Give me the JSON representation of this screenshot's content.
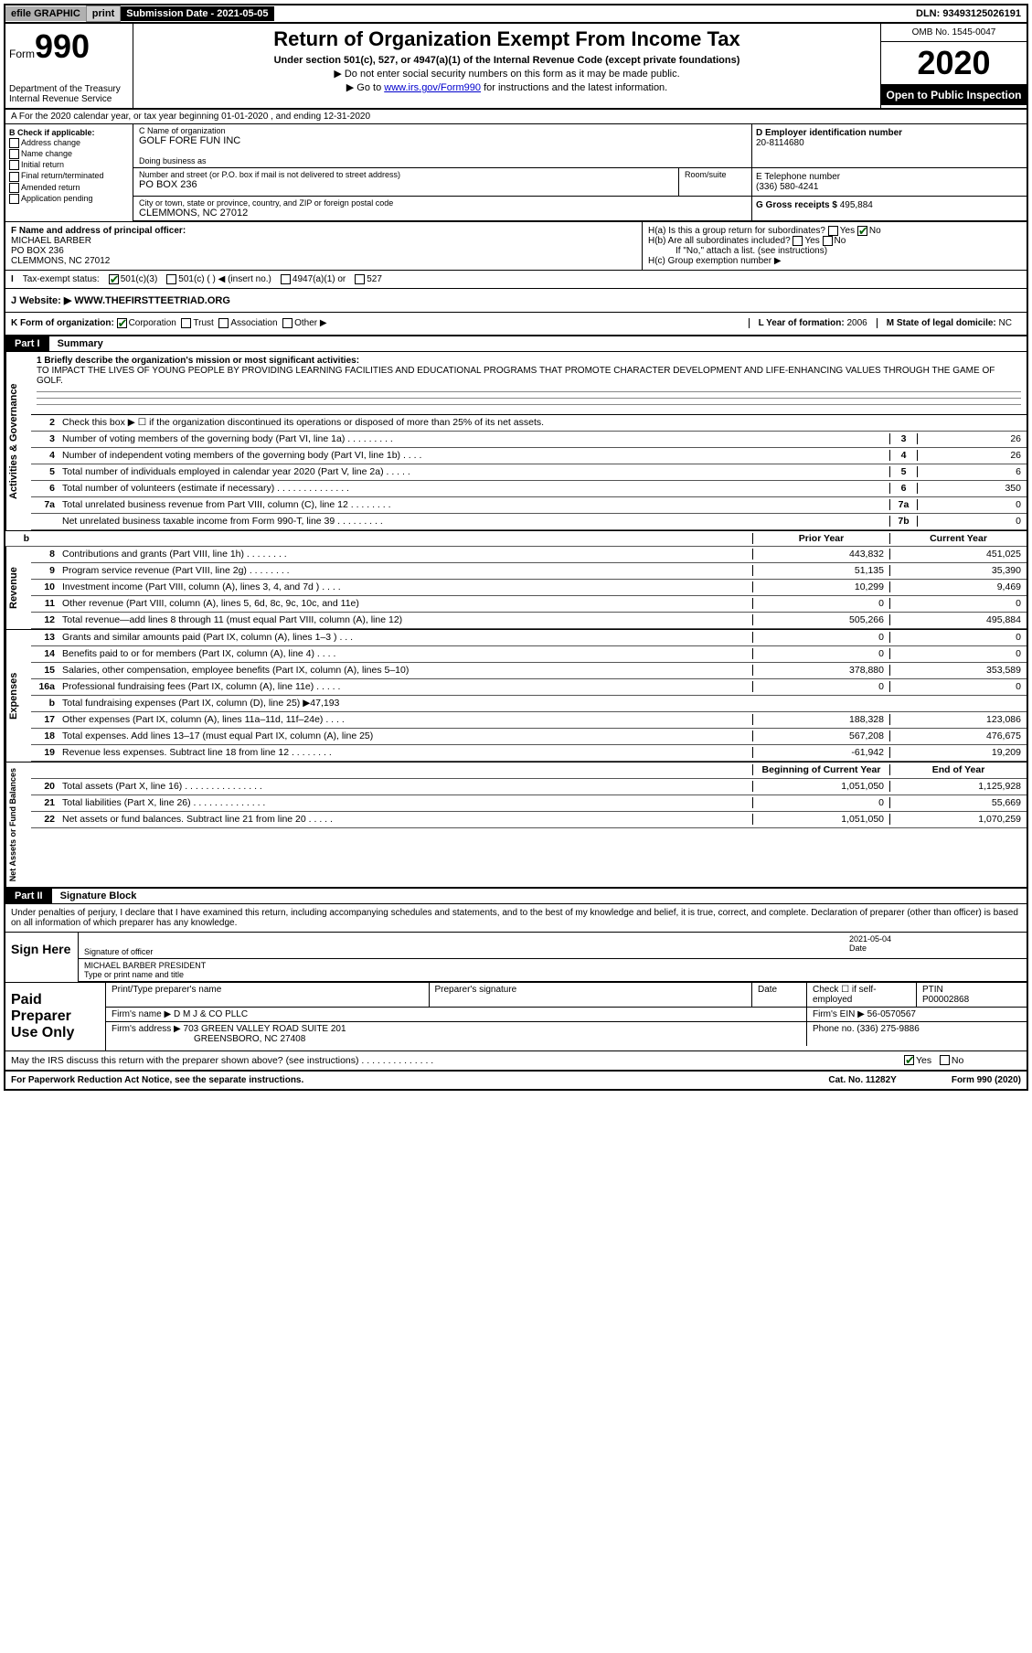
{
  "top": {
    "efile": "efile GRAPHIC",
    "print": "print",
    "sub_date_label": "Submission Date - 2021-05-05",
    "dln": "DLN: 93493125026191"
  },
  "header": {
    "form_word": "Form",
    "form_num": "990",
    "dept": "Department of the Treasury",
    "service": "Internal Revenue Service",
    "title": "Return of Organization Exempt From Income Tax",
    "sub": "Under section 501(c), 527, or 4947(a)(1) of the Internal Revenue Code (except private foundations)",
    "note1": "▶ Do not enter social security numbers on this form as it may be made public.",
    "note2_pre": "▶ Go to ",
    "note2_link": "www.irs.gov/Form990",
    "note2_post": " for instructions and the latest information.",
    "omb": "OMB No. 1545-0047",
    "year": "2020",
    "inspect": "Open to Public Inspection"
  },
  "lineA": "A For the 2020 calendar year, or tax year beginning 01-01-2020   , and ending 12-31-2020",
  "colB": {
    "title": "B Check if applicable:",
    "opts": [
      "Address change",
      "Name change",
      "Initial return",
      "Final return/terminated",
      "Amended return",
      "Application pending"
    ]
  },
  "C": {
    "name_label": "C Name of organization",
    "name": "GOLF FORE FUN INC",
    "dba_label": "Doing business as",
    "addr_label": "Number and street (or P.O. box if mail is not delivered to street address)",
    "addr": "PO BOX 236",
    "room_label": "Room/suite",
    "city_label": "City or town, state or province, country, and ZIP or foreign postal code",
    "city": "CLEMMONS, NC  27012"
  },
  "D": {
    "label": "D Employer identification number",
    "val": "20-8114680"
  },
  "E": {
    "label": "E Telephone number",
    "val": "(336) 580-4241"
  },
  "G": {
    "label": "G Gross receipts $",
    "val": "495,884"
  },
  "F": {
    "label": "F  Name and address of principal officer:",
    "name": "MICHAEL BARBER",
    "addr1": "PO BOX 236",
    "addr2": "CLEMMONS, NC  27012"
  },
  "H": {
    "a": "H(a)  Is this a group return for subordinates?",
    "b": "H(b)  Are all subordinates included?",
    "b_note": "If \"No,\" attach a list. (see instructions)",
    "c": "H(c)  Group exemption number ▶",
    "yes": "Yes",
    "no": "No"
  },
  "I": {
    "label": "Tax-exempt status:",
    "opts": [
      "501(c)(3)",
      "501(c) (  ) ◀ (insert no.)",
      "4947(a)(1) or",
      "527"
    ]
  },
  "J": {
    "label": "Website: ▶",
    "val": "WWW.THEFIRSTTEETRIAD.ORG"
  },
  "K": {
    "label": "K Form of organization:",
    "opts": [
      "Corporation",
      "Trust",
      "Association",
      "Other ▶"
    ],
    "L_label": "L Year of formation:",
    "L_val": "2006",
    "M_label": "M State of legal domicile:",
    "M_val": "NC"
  },
  "part1": {
    "hdr": "Part I",
    "title": "Summary"
  },
  "ag": {
    "side": "Activities & Governance",
    "q1_label": "1  Briefly describe the organization's mission or most significant activities:",
    "q1_text": "TO IMPACT THE LIVES OF YOUNG PEOPLE BY PROVIDING LEARNING FACILITIES AND EDUCATIONAL PROGRAMS THAT PROMOTE CHARACTER DEVELOPMENT AND LIFE-ENHANCING VALUES THROUGH THE GAME OF GOLF.",
    "q2": "Check this box ▶ ☐  if the organization discontinued its operations or disposed of more than 25% of its net assets.",
    "rows": [
      {
        "n": "3",
        "t": "Number of voting members of the governing body (Part VI, line 1a)  .  .  .  .  .  .  .  .  .",
        "b": "3",
        "v": "26"
      },
      {
        "n": "4",
        "t": "Number of independent voting members of the governing body (Part VI, line 1b)  .  .  .  .",
        "b": "4",
        "v": "26"
      },
      {
        "n": "5",
        "t": "Total number of individuals employed in calendar year 2020 (Part V, line 2a)  .  .  .  .  .",
        "b": "5",
        "v": "6"
      },
      {
        "n": "6",
        "t": "Total number of volunteers (estimate if necessary)   .  .  .  .  .  .  .  .  .  .  .  .  .  .",
        "b": "6",
        "v": "350"
      },
      {
        "n": "7a",
        "t": "Total unrelated business revenue from Part VIII, column (C), line 12   .  .  .  .  .  .  .  .",
        "b": "7a",
        "v": "0"
      },
      {
        "n": "",
        "t": "Net unrelated business taxable income from Form 990-T, line 39   .  .  .  .  .  .  .  .  .",
        "b": "7b",
        "v": "0"
      }
    ]
  },
  "cols": {
    "b": "b",
    "prior": "Prior Year",
    "current": "Current Year"
  },
  "rev": {
    "side": "Revenue",
    "rows": [
      {
        "n": "8",
        "t": "Contributions and grants (Part VIII, line 1h)   .  .  .  .  .  .  .  .",
        "p": "443,832",
        "c": "451,025"
      },
      {
        "n": "9",
        "t": "Program service revenue (Part VIII, line 2g)   .  .  .  .  .  .  .  .",
        "p": "51,135",
        "c": "35,390"
      },
      {
        "n": "10",
        "t": "Investment income (Part VIII, column (A), lines 3, 4, and 7d )   .  .  .  .",
        "p": "10,299",
        "c": "9,469"
      },
      {
        "n": "11",
        "t": "Other revenue (Part VIII, column (A), lines 5, 6d, 8c, 9c, 10c, and 11e)",
        "p": "0",
        "c": "0"
      },
      {
        "n": "12",
        "t": "Total revenue—add lines 8 through 11 (must equal Part VIII, column (A), line 12)",
        "p": "505,266",
        "c": "495,884"
      }
    ]
  },
  "exp": {
    "side": "Expenses",
    "rows": [
      {
        "n": "13",
        "t": "Grants and similar amounts paid (Part IX, column (A), lines 1–3 )  .  .  .",
        "p": "0",
        "c": "0"
      },
      {
        "n": "14",
        "t": "Benefits paid to or for members (Part IX, column (A), line 4)  .  .  .  .",
        "p": "0",
        "c": "0"
      },
      {
        "n": "15",
        "t": "Salaries, other compensation, employee benefits (Part IX, column (A), lines 5–10)",
        "p": "378,880",
        "c": "353,589"
      },
      {
        "n": "16a",
        "t": "Professional fundraising fees (Part IX, column (A), line 11e)  .  .  .  .  .",
        "p": "0",
        "c": "0"
      }
    ],
    "b_row": {
      "n": "b",
      "t": "Total fundraising expenses (Part IX, column (D), line 25) ▶47,193"
    },
    "rows2": [
      {
        "n": "17",
        "t": "Other expenses (Part IX, column (A), lines 11a–11d, 11f–24e)  .  .  .  .",
        "p": "188,328",
        "c": "123,086"
      },
      {
        "n": "18",
        "t": "Total expenses. Add lines 13–17 (must equal Part IX, column (A), line 25)",
        "p": "567,208",
        "c": "476,675"
      },
      {
        "n": "19",
        "t": "Revenue less expenses. Subtract line 18 from line 12 .  .  .  .  .  .  .  .",
        "p": "-61,942",
        "c": "19,209"
      }
    ]
  },
  "na": {
    "side": "Net Assets or Fund Balances",
    "hdr_p": "Beginning of Current Year",
    "hdr_c": "End of Year",
    "rows": [
      {
        "n": "20",
        "t": "Total assets (Part X, line 16)  .  .  .  .  .  .  .  .  .  .  .  .  .  .  .",
        "p": "1,051,050",
        "c": "1,125,928"
      },
      {
        "n": "21",
        "t": "Total liabilities (Part X, line 26)  .  .  .  .  .  .  .  .  .  .  .  .  .  .",
        "p": "0",
        "c": "55,669"
      },
      {
        "n": "22",
        "t": "Net assets or fund balances. Subtract line 21 from line 20  .  .  .  .  .",
        "p": "1,051,050",
        "c": "1,070,259"
      }
    ]
  },
  "part2": {
    "hdr": "Part II",
    "title": "Signature Block"
  },
  "sig": {
    "decl": "Under penalties of perjury, I declare that I have examined this return, including accompanying schedules and statements, and to the best of my knowledge and belief, it is true, correct, and complete. Declaration of preparer (other than officer) is based on all information of which preparer has any knowledge.",
    "sign_here": "Sign Here",
    "sig_label": "Signature of officer",
    "date": "2021-05-04",
    "date_label": "Date",
    "name": "MICHAEL BARBER  PRESIDENT",
    "name_label": "Type or print name and title"
  },
  "prep": {
    "title": "Paid Preparer Use Only",
    "h1": "Print/Type preparer's name",
    "h2": "Preparer's signature",
    "h3": "Date",
    "check_label": "Check ☐ if self-employed",
    "ptin_label": "PTIN",
    "ptin": "P00002868",
    "firm_label": "Firm's name   ▶",
    "firm": "D M J & CO PLLC",
    "ein_label": "Firm's EIN ▶",
    "ein": "56-0570567",
    "addr_label": "Firm's address ▶",
    "addr": "703 GREEN VALLEY ROAD SUITE 201",
    "city": "GREENSBORO, NC  27408",
    "phone_label": "Phone no.",
    "phone": "(336) 275-9886"
  },
  "footer": {
    "discuss": "May the IRS discuss this return with the preparer shown above? (see instructions)  .  .  .  .  .  .  .  .  .  .  .  .  .  .",
    "yes": "Yes",
    "no": "No",
    "pra": "For Paperwork Reduction Act Notice, see the separate instructions.",
    "cat": "Cat. No. 11282Y",
    "form": "Form 990 (2020)"
  }
}
